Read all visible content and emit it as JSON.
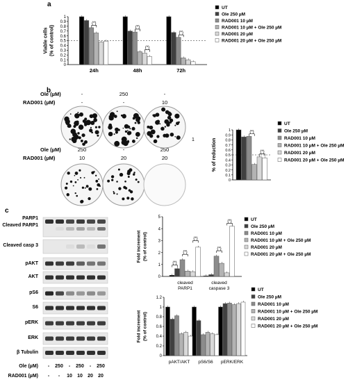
{
  "panel_letters": {
    "a": "a",
    "b": "b",
    "c": "c"
  },
  "legend_labels": [
    "UT",
    "Ole 250 µM",
    "RAD001 10 µM",
    "RAD001 10 µM + Ole 250 µM",
    "RAD001 20 µM",
    "RAD001 20 µM + Ole 250 µM"
  ],
  "series_colors": [
    "#000000",
    "#404040",
    "#8c8c8c",
    "#b3b3b3",
    "#d9d9d9",
    "#ffffff"
  ],
  "significance_label": "(*)",
  "panel_b": {
    "row_labels": [
      "Ole (µM)",
      "RAD001 (µM)"
    ],
    "top_row": [
      {
        "ole": "-",
        "rad": "-"
      },
      {
        "ole": "250",
        "rad": "-"
      },
      {
        "ole": "-",
        "rad": "10"
      }
    ],
    "bottom_row": [
      {
        "ole": "250",
        "rad": "10"
      },
      {
        "ole": "-",
        "rad": "20"
      },
      {
        "ole": "250",
        "rad": "20"
      }
    ],
    "stray_mark": "1"
  },
  "panel_c": {
    "blot_labels": [
      "PARP1",
      "Cleaved PARP1",
      "Cleaved casp 3",
      "pAKT",
      "AKT",
      "pS6",
      "S6",
      "pERK",
      "ERK",
      "β Tubulin"
    ],
    "treat_labels": [
      "Ole (µM)",
      "RAD001 (µM)"
    ],
    "lanes_ole": [
      "-",
      "250",
      "-",
      "250",
      "-",
      "250"
    ],
    "lanes_rad": [
      "-",
      "-",
      "10",
      "10",
      "20",
      "20"
    ]
  },
  "chart_data": [
    {
      "type": "bar",
      "ylabel": "Viable cells\n(% of control)",
      "ylim": [
        0,
        1
      ],
      "yticks": [
        "0",
        "0.1",
        "0.2",
        "0.3",
        "0.4",
        "0.5",
        "0.6",
        "0.7",
        "0.8",
        "0.9",
        "1"
      ],
      "categories": [
        "24h",
        "48h",
        "72h"
      ],
      "reference_line": 0.5,
      "series": [
        {
          "name": "UT",
          "values": [
            1.0,
            1.0,
            1.0
          ]
        },
        {
          "name": "Ole 250 µM",
          "values": [
            0.92,
            0.7,
            0.67
          ]
        },
        {
          "name": "RAD001 10 µM",
          "values": [
            0.77,
            0.68,
            0.57
          ]
        },
        {
          "name": "RAD001 10 µM + Ole 250 µM",
          "values": [
            0.66,
            0.27,
            0.14
          ]
        },
        {
          "name": "RAD001 20 µM",
          "values": [
            0.47,
            0.24,
            0.1
          ]
        },
        {
          "name": "RAD001 20 µM + Ole 250 µM",
          "values": [
            0.49,
            0.17,
            0.06
          ]
        }
      ],
      "legend": "right"
    },
    {
      "type": "bar",
      "ylabel": "% of reduction",
      "ylim": [
        0,
        1
      ],
      "yticks": [
        "0",
        "0.1",
        "0.2",
        "0.3",
        "0.4",
        "0.5",
        "0.6",
        "0.7",
        "0.8",
        "0.9",
        "1"
      ],
      "reference_line": 0.5,
      "series": [
        {
          "name": "UT",
          "values": [
            1.0
          ]
        },
        {
          "name": "Ole 250 µM",
          "values": [
            0.86
          ]
        },
        {
          "name": "RAD001 10 µM",
          "values": [
            0.87
          ]
        },
        {
          "name": "RAD001 10 µM + Ole 250 µM",
          "values": [
            0.31
          ]
        },
        {
          "name": "RAD001 20 µM",
          "values": [
            0.46
          ]
        },
        {
          "name": "RAD001 20 µM + Ole 250 µM",
          "values": [
            0.44
          ]
        }
      ],
      "legend": "right"
    },
    {
      "type": "bar",
      "ylabel": "Fold increment\n(% of control)",
      "ylim": [
        0,
        5
      ],
      "yticks": [
        "0",
        "1",
        "2",
        "3",
        "4",
        "5"
      ],
      "categories": [
        "cleaved\nPARP1",
        "cleaved\ncaspase 3"
      ],
      "series": [
        {
          "name": "UT",
          "values": [
            0.1,
            0.05
          ]
        },
        {
          "name": "Ole 250 µM",
          "values": [
            0.65,
            0.15
          ]
        },
        {
          "name": "RAD001 10 µM",
          "values": [
            1.4,
            1.7
          ]
        },
        {
          "name": "RAD001 10 µM + Ole 250 µM",
          "values": [
            0.45,
            1.1
          ]
        },
        {
          "name": "RAD001 20 µM",
          "values": [
            0.4,
            0.3
          ]
        },
        {
          "name": "RAD001 20 µM + Ole 250 µM",
          "values": [
            2.45,
            4.2
          ]
        }
      ],
      "legend": "right"
    },
    {
      "type": "bar",
      "ylabel": "Fold increment\n(% of control)",
      "ylim": [
        0,
        1.2
      ],
      "yticks": [
        "0",
        "0.2",
        "0.4",
        "0.6",
        "0.8",
        "1",
        "1.2"
      ],
      "categories": [
        "pAKT/AKT",
        "pS6/S6",
        "pERK/ERK"
      ],
      "series": [
        {
          "name": "UT",
          "values": [
            1.0,
            1.0,
            1.0
          ]
        },
        {
          "name": "Ole 250 µM",
          "values": [
            0.75,
            0.72,
            1.07
          ]
        },
        {
          "name": "RAD001 10 µM",
          "values": [
            0.82,
            0.43,
            1.08
          ]
        },
        {
          "name": "RAD001 10 µM + Ole 250 µM",
          "values": [
            0.45,
            0.48,
            1.05
          ]
        },
        {
          "name": "RAD001 20 µM",
          "values": [
            0.48,
            0.45,
            1.07
          ]
        },
        {
          "name": "RAD001 20 µM + Ole 250 µM",
          "values": [
            0.4,
            0.43,
            1.1
          ]
        }
      ],
      "legend": "right"
    }
  ]
}
